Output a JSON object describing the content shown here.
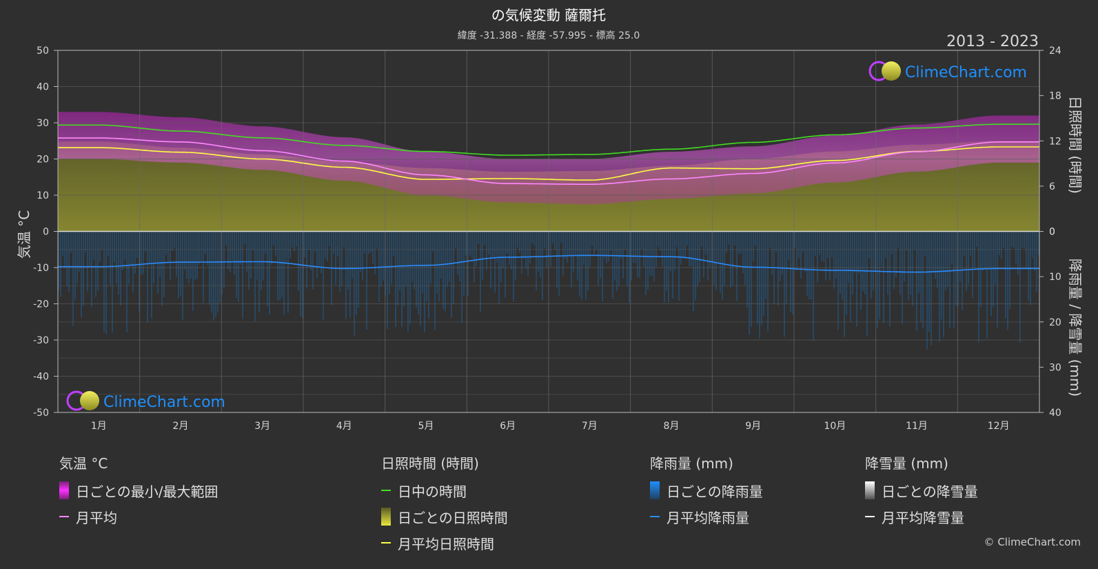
{
  "header": {
    "title": "の気候変動 薩爾托",
    "subtitle": "緯度 -31.388 - 経度 -57.995 - 標高 25.0",
    "year_range": "2013 - 2023"
  },
  "brand": {
    "logo_text": "ClimeChart.com",
    "copyright": "© ClimeChart.com"
  },
  "colors": {
    "background": "#2f2f2f",
    "temp_range": "#d020d0",
    "temp_avg": "#ff88ff",
    "daylight": "#44dd22",
    "sunshine_daily": "#c8c832",
    "sunshine_avg": "#ffff44",
    "rain_daily": "#1e6fb4",
    "rain_avg": "#2a8cff",
    "snow_avg": "#ffffff",
    "logo_blue": "#1e90ff"
  },
  "chart_data": {
    "type": "line",
    "categories": [
      "1月",
      "2月",
      "3月",
      "4月",
      "5月",
      "6月",
      "7月",
      "8月",
      "9月",
      "10月",
      "11月",
      "12月"
    ],
    "left_axis": {
      "label": "気温 °C",
      "ylim": [
        -50,
        50
      ],
      "ticks": [
        "50",
        "40",
        "30",
        "20",
        "10",
        "0",
        "-10",
        "-20",
        "-30",
        "-40",
        "-50"
      ]
    },
    "right_axis_top": {
      "label": "日照時間 (時間)",
      "ylim": [
        0,
        24
      ],
      "ticks": [
        "24",
        "18",
        "12",
        "6",
        "0"
      ]
    },
    "right_axis_bottom": {
      "label": "降雨量 / 降雪量 (mm)",
      "ylim": [
        0,
        40
      ],
      "ticks": [
        "0",
        "10",
        "20",
        "30",
        "40"
      ]
    },
    "grid": true,
    "series": [
      {
        "name": "日中の時間",
        "axis": "sunshine_hours",
        "values": [
          14.1,
          13.3,
          12.4,
          11.4,
          10.6,
          10.1,
          10.2,
          10.9,
          11.8,
          12.8,
          13.7,
          14.2
        ]
      },
      {
        "name": "月平均日照時間",
        "axis": "sunshine_hours",
        "values": [
          11.1,
          10.5,
          9.6,
          8.5,
          6.9,
          7.0,
          6.8,
          8.4,
          8.3,
          9.4,
          10.6,
          11.2
        ]
      },
      {
        "name": "月平均",
        "axis": "temperature_c",
        "values": [
          25.8,
          24.7,
          22.3,
          19.4,
          15.6,
          13.2,
          13.0,
          14.5,
          16.0,
          18.9,
          22.0,
          24.7
        ]
      },
      {
        "name": "月平均降雨量",
        "axis": "precip_mm",
        "values": [
          7.8,
          6.8,
          6.7,
          8.2,
          7.5,
          5.7,
          5.3,
          5.6,
          7.9,
          8.6,
          9.0,
          8.2
        ]
      },
      {
        "name": "月平均降雪量",
        "axis": "precip_mm",
        "values": [
          0,
          0,
          0,
          0,
          0,
          0,
          0,
          0,
          0,
          0,
          0,
          0
        ]
      }
    ],
    "daily_ranges": {
      "temp_max_c": [
        33,
        31.5,
        29,
        26,
        22,
        20,
        20,
        22,
        23.5,
        26.5,
        29.5,
        32
      ],
      "temp_min_c": [
        20,
        19,
        17,
        14,
        10,
        8,
        7.5,
        9,
        10.5,
        13.5,
        16.5,
        19
      ]
    }
  },
  "legend": {
    "temperature": {
      "title": "気温 °C",
      "items": [
        "日ごとの最小/最大範囲",
        "月平均"
      ]
    },
    "sunshine": {
      "title": "日照時間 (時間)",
      "items": [
        "日中の時間",
        "日ごとの日照時間",
        "月平均日照時間"
      ]
    },
    "rain": {
      "title": "降雨量 (mm)",
      "items": [
        "日ごとの降雨量",
        "月平均降雨量"
      ]
    },
    "snow": {
      "title": "降雪量 (mm)",
      "items": [
        "日ごとの降雪量",
        "月平均降雪量"
      ]
    }
  }
}
